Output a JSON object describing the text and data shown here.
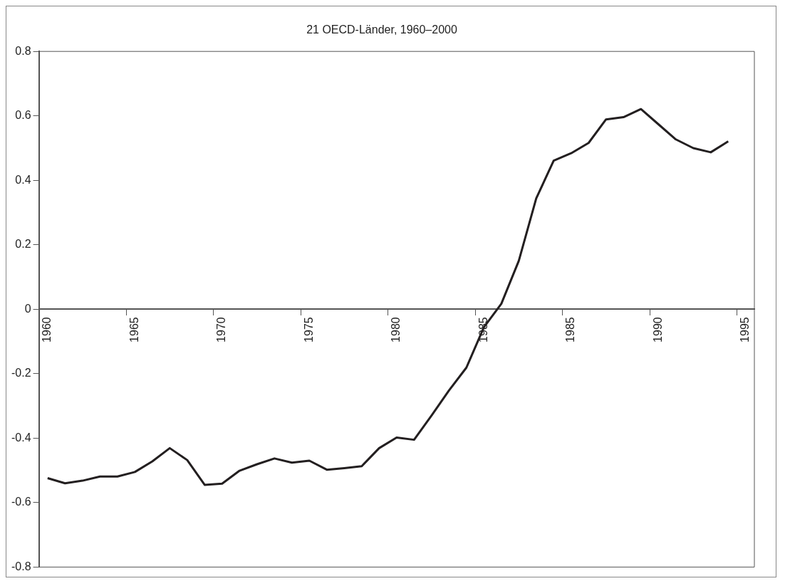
{
  "chart_data": {
    "type": "line",
    "title": "21 OECD-Länder, 1960–2000",
    "categories": [
      "1960",
      null,
      null,
      null,
      null,
      "1965",
      null,
      null,
      null,
      null,
      "1970",
      null,
      null,
      null,
      null,
      "1975",
      null,
      null,
      null,
      null,
      "1980",
      null,
      null,
      null,
      null,
      "1985",
      null,
      null,
      null,
      null,
      "1985",
      null,
      null,
      null,
      null,
      "1990",
      null,
      null,
      null,
      null,
      "1995"
    ],
    "series": [
      {
        "color": "#231f20",
        "values": [
          -0.524,
          -0.54,
          -0.532,
          -0.519,
          -0.519,
          -0.505,
          -0.472,
          -0.431,
          -0.468,
          -0.545,
          -0.541,
          -0.501,
          -0.481,
          -0.463,
          -0.476,
          -0.47,
          -0.498,
          -0.493,
          -0.487,
          -0.431,
          -0.398,
          -0.405,
          -0.33,
          -0.252,
          -0.181,
          -0.056,
          0.017,
          0.15,
          0.344,
          0.461,
          0.484,
          0.516,
          0.589,
          0.596,
          0.621,
          0.574,
          0.527,
          0.5,
          0.487,
          0.521,
          null
        ]
      }
    ],
    "ylim": [
      -0.8,
      0.8
    ],
    "yticks": [
      -0.8,
      -0.6,
      -0.4,
      -0.2,
      0,
      0.2,
      0.4,
      0.6,
      0.8
    ],
    "grid": false,
    "legend": false,
    "marker": "none",
    "line_style": "solid"
  }
}
